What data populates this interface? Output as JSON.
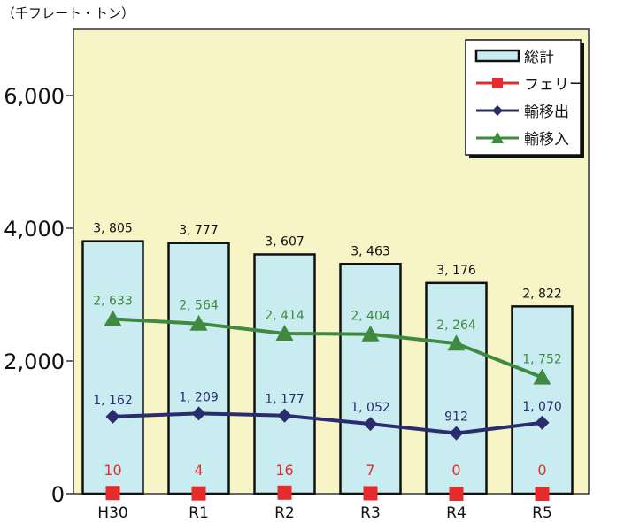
{
  "unit_label": "（千フレート・トン）",
  "chart_data": {
    "type": "bar",
    "categories": [
      "H30",
      "R1",
      "R2",
      "R3",
      "R4",
      "R5"
    ],
    "ylim": [
      0,
      7000
    ],
    "yticks": [
      0,
      2000,
      4000,
      6000
    ],
    "ytick_labels": [
      "0",
      "2,000",
      "4,000",
      "6,000"
    ],
    "series": [
      {
        "name": "総計",
        "type": "bar",
        "values": [
          3805,
          3777,
          3607,
          3463,
          3176,
          2822
        ],
        "labels": [
          "3, 805",
          "3, 777",
          "3, 607",
          "3, 463",
          "3, 176",
          "2, 822"
        ],
        "color": "#c9ecf1"
      },
      {
        "name": "フェリー",
        "type": "line",
        "values": [
          10,
          4,
          16,
          7,
          0,
          0
        ],
        "labels": [
          "10",
          "4",
          "16",
          "7",
          "0",
          "0"
        ],
        "color": "#e52b2b",
        "marker": "square"
      },
      {
        "name": "輸移出",
        "type": "line",
        "values": [
          1162,
          1209,
          1177,
          1052,
          912,
          1070
        ],
        "labels": [
          "1, 162",
          "1, 209",
          "1, 177",
          "1, 052",
          "912",
          "1, 070"
        ],
        "color": "#2a2c6e",
        "marker": "diamond"
      },
      {
        "name": "輸移入",
        "type": "line",
        "values": [
          2633,
          2564,
          2414,
          2404,
          2264,
          1752
        ],
        "labels": [
          "2, 633",
          "2, 564",
          "2, 414",
          "2, 404",
          "2, 264",
          "1, 752"
        ],
        "color": "#3f8a3f",
        "marker": "triangle"
      }
    ],
    "plot_background": "#f7f5c6",
    "legend_position": "top-right",
    "grid": false
  }
}
